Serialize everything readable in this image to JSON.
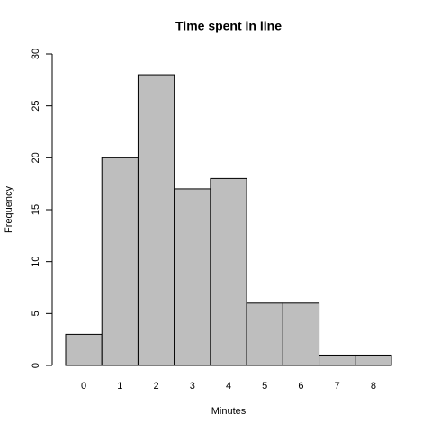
{
  "chart_data": {
    "type": "bar",
    "title": "Time spent in line",
    "x_label": "Minutes",
    "y_label": "Frequency",
    "categories": [
      "0",
      "1",
      "2",
      "3",
      "4",
      "5",
      "6",
      "7",
      "8"
    ],
    "values": [
      3,
      20,
      28,
      17,
      18,
      6,
      6,
      1,
      1
    ],
    "color": "#bebebe",
    "ylim": [
      0,
      30
    ],
    "yticks": [
      0,
      5,
      10,
      15,
      20,
      25,
      30
    ],
    "grid": false
  }
}
